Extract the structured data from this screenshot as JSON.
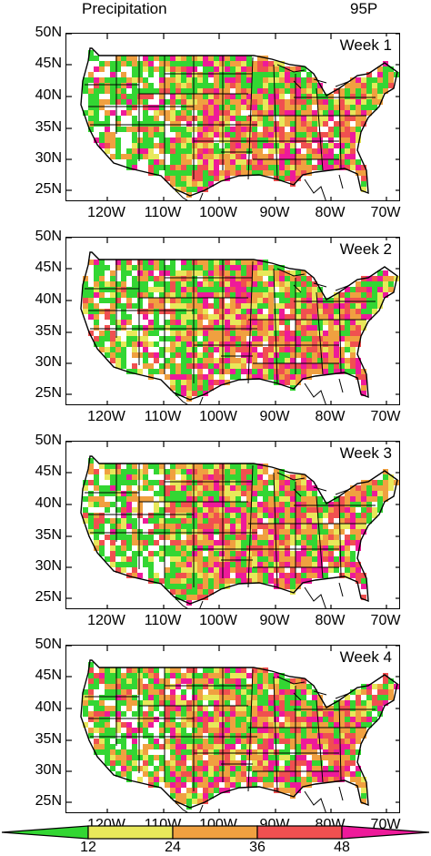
{
  "header": {
    "variable": "Precipitation",
    "statistic": "95P"
  },
  "y_tick_labels": [
    "50N",
    "45N",
    "40N",
    "35N",
    "30N",
    "25N"
  ],
  "x_tick_labels": [
    "120W",
    "110W",
    "100W",
    "90W",
    "80W",
    "70W"
  ],
  "colors": {
    "green": "#33d633",
    "yellow": "#e8e85a",
    "orange": "#f0a040",
    "red": "#f05050",
    "magenta": "#ee1a9a"
  },
  "panels": [
    {
      "label": "Week 1"
    },
    {
      "label": "Week 2"
    },
    {
      "label": "Week 3"
    },
    {
      "label": "Week 4"
    }
  ],
  "colorbar": {
    "labels": [
      "12",
      "24",
      "36",
      "48"
    ]
  }
}
